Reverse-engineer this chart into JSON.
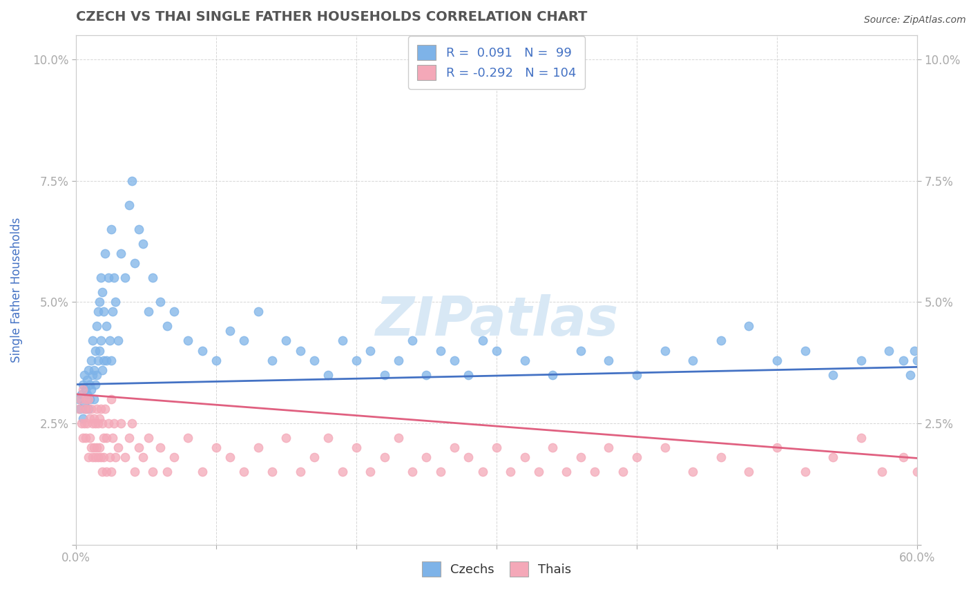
{
  "title": "CZECH VS THAI SINGLE FATHER HOUSEHOLDS CORRELATION CHART",
  "source": "Source: ZipAtlas.com",
  "ylabel": "Single Father Households",
  "xlim": [
    0.0,
    0.6
  ],
  "ylim": [
    0.0,
    0.105
  ],
  "xticks": [
    0.0,
    0.1,
    0.2,
    0.3,
    0.4,
    0.5,
    0.6
  ],
  "xticklabels": [
    "0.0%",
    "",
    "",
    "",
    "",
    "",
    "60.0%"
  ],
  "yticks": [
    0.0,
    0.025,
    0.05,
    0.075,
    0.1
  ],
  "yticklabels": [
    "",
    "2.5%",
    "5.0%",
    "7.5%",
    "10.0%"
  ],
  "czech_color": "#7EB3E8",
  "thai_color": "#F4A8B8",
  "czech_line_color": "#4472C4",
  "thai_line_color": "#E06080",
  "legend_r_czech": "R =  0.091",
  "legend_n_czech": "N =  99",
  "legend_r_thai": "R = -0.292",
  "legend_n_thai": "N = 104",
  "czech_slope": 0.006,
  "czech_intercept": 0.033,
  "thai_slope": -0.022,
  "thai_intercept": 0.031,
  "czech_x": [
    0.002,
    0.003,
    0.004,
    0.005,
    0.005,
    0.006,
    0.006,
    0.007,
    0.007,
    0.008,
    0.008,
    0.009,
    0.009,
    0.01,
    0.01,
    0.011,
    0.011,
    0.012,
    0.012,
    0.013,
    0.013,
    0.014,
    0.014,
    0.015,
    0.015,
    0.016,
    0.016,
    0.017,
    0.017,
    0.018,
    0.018,
    0.019,
    0.019,
    0.02,
    0.02,
    0.021,
    0.022,
    0.022,
    0.023,
    0.024,
    0.025,
    0.025,
    0.026,
    0.027,
    0.028,
    0.03,
    0.032,
    0.035,
    0.038,
    0.04,
    0.042,
    0.045,
    0.048,
    0.052,
    0.055,
    0.06,
    0.065,
    0.07,
    0.08,
    0.09,
    0.1,
    0.11,
    0.12,
    0.13,
    0.14,
    0.15,
    0.16,
    0.17,
    0.18,
    0.19,
    0.2,
    0.21,
    0.22,
    0.23,
    0.24,
    0.25,
    0.26,
    0.27,
    0.28,
    0.29,
    0.3,
    0.32,
    0.34,
    0.36,
    0.38,
    0.4,
    0.42,
    0.44,
    0.46,
    0.48,
    0.5,
    0.52,
    0.54,
    0.56,
    0.58,
    0.59,
    0.595,
    0.598,
    0.6
  ],
  "czech_y": [
    0.03,
    0.028,
    0.031,
    0.033,
    0.026,
    0.029,
    0.035,
    0.032,
    0.028,
    0.034,
    0.031,
    0.036,
    0.028,
    0.033,
    0.03,
    0.038,
    0.032,
    0.035,
    0.042,
    0.036,
    0.03,
    0.04,
    0.033,
    0.045,
    0.035,
    0.048,
    0.038,
    0.05,
    0.04,
    0.055,
    0.042,
    0.052,
    0.036,
    0.048,
    0.038,
    0.06,
    0.045,
    0.038,
    0.055,
    0.042,
    0.065,
    0.038,
    0.048,
    0.055,
    0.05,
    0.042,
    0.06,
    0.055,
    0.07,
    0.075,
    0.058,
    0.065,
    0.062,
    0.048,
    0.055,
    0.05,
    0.045,
    0.048,
    0.042,
    0.04,
    0.038,
    0.044,
    0.042,
    0.048,
    0.038,
    0.042,
    0.04,
    0.038,
    0.035,
    0.042,
    0.038,
    0.04,
    0.035,
    0.038,
    0.042,
    0.035,
    0.04,
    0.038,
    0.035,
    0.042,
    0.04,
    0.038,
    0.035,
    0.04,
    0.038,
    0.035,
    0.04,
    0.038,
    0.042,
    0.045,
    0.038,
    0.04,
    0.035,
    0.038,
    0.04,
    0.038,
    0.035,
    0.04,
    0.038
  ],
  "thai_x": [
    0.002,
    0.003,
    0.004,
    0.005,
    0.005,
    0.006,
    0.006,
    0.007,
    0.007,
    0.008,
    0.008,
    0.009,
    0.009,
    0.01,
    0.01,
    0.011,
    0.011,
    0.012,
    0.012,
    0.013,
    0.013,
    0.014,
    0.014,
    0.015,
    0.015,
    0.016,
    0.016,
    0.017,
    0.017,
    0.018,
    0.018,
    0.019,
    0.019,
    0.02,
    0.02,
    0.021,
    0.022,
    0.022,
    0.023,
    0.024,
    0.025,
    0.025,
    0.026,
    0.027,
    0.028,
    0.03,
    0.032,
    0.035,
    0.038,
    0.04,
    0.042,
    0.045,
    0.048,
    0.052,
    0.055,
    0.06,
    0.065,
    0.07,
    0.08,
    0.09,
    0.1,
    0.11,
    0.12,
    0.13,
    0.14,
    0.15,
    0.16,
    0.17,
    0.18,
    0.19,
    0.2,
    0.21,
    0.22,
    0.23,
    0.24,
    0.25,
    0.26,
    0.27,
    0.28,
    0.29,
    0.3,
    0.31,
    0.32,
    0.33,
    0.34,
    0.35,
    0.36,
    0.37,
    0.38,
    0.39,
    0.4,
    0.42,
    0.44,
    0.46,
    0.48,
    0.5,
    0.52,
    0.54,
    0.56,
    0.575,
    0.59,
    0.6,
    0.605,
    0.61
  ],
  "thai_y": [
    0.028,
    0.03,
    0.025,
    0.032,
    0.022,
    0.028,
    0.025,
    0.03,
    0.022,
    0.028,
    0.025,
    0.03,
    0.018,
    0.026,
    0.022,
    0.028,
    0.02,
    0.025,
    0.018,
    0.026,
    0.02,
    0.025,
    0.018,
    0.028,
    0.02,
    0.025,
    0.018,
    0.026,
    0.02,
    0.028,
    0.018,
    0.025,
    0.015,
    0.022,
    0.018,
    0.028,
    0.022,
    0.015,
    0.025,
    0.018,
    0.03,
    0.015,
    0.022,
    0.025,
    0.018,
    0.02,
    0.025,
    0.018,
    0.022,
    0.025,
    0.015,
    0.02,
    0.018,
    0.022,
    0.015,
    0.02,
    0.015,
    0.018,
    0.022,
    0.015,
    0.02,
    0.018,
    0.015,
    0.02,
    0.015,
    0.022,
    0.015,
    0.018,
    0.022,
    0.015,
    0.02,
    0.015,
    0.018,
    0.022,
    0.015,
    0.018,
    0.015,
    0.02,
    0.018,
    0.015,
    0.02,
    0.015,
    0.018,
    0.015,
    0.02,
    0.015,
    0.018,
    0.015,
    0.02,
    0.015,
    0.018,
    0.02,
    0.015,
    0.018,
    0.015,
    0.02,
    0.015,
    0.018,
    0.022,
    0.015,
    0.018,
    0.015,
    0.02,
    0.015
  ],
  "background_color": "#FFFFFF",
  "grid_color": "#CCCCCC",
  "title_color": "#555555",
  "axis_label_color": "#4472C4",
  "watermark": "ZIPatlas",
  "watermark_color": "#DDDDDD"
}
